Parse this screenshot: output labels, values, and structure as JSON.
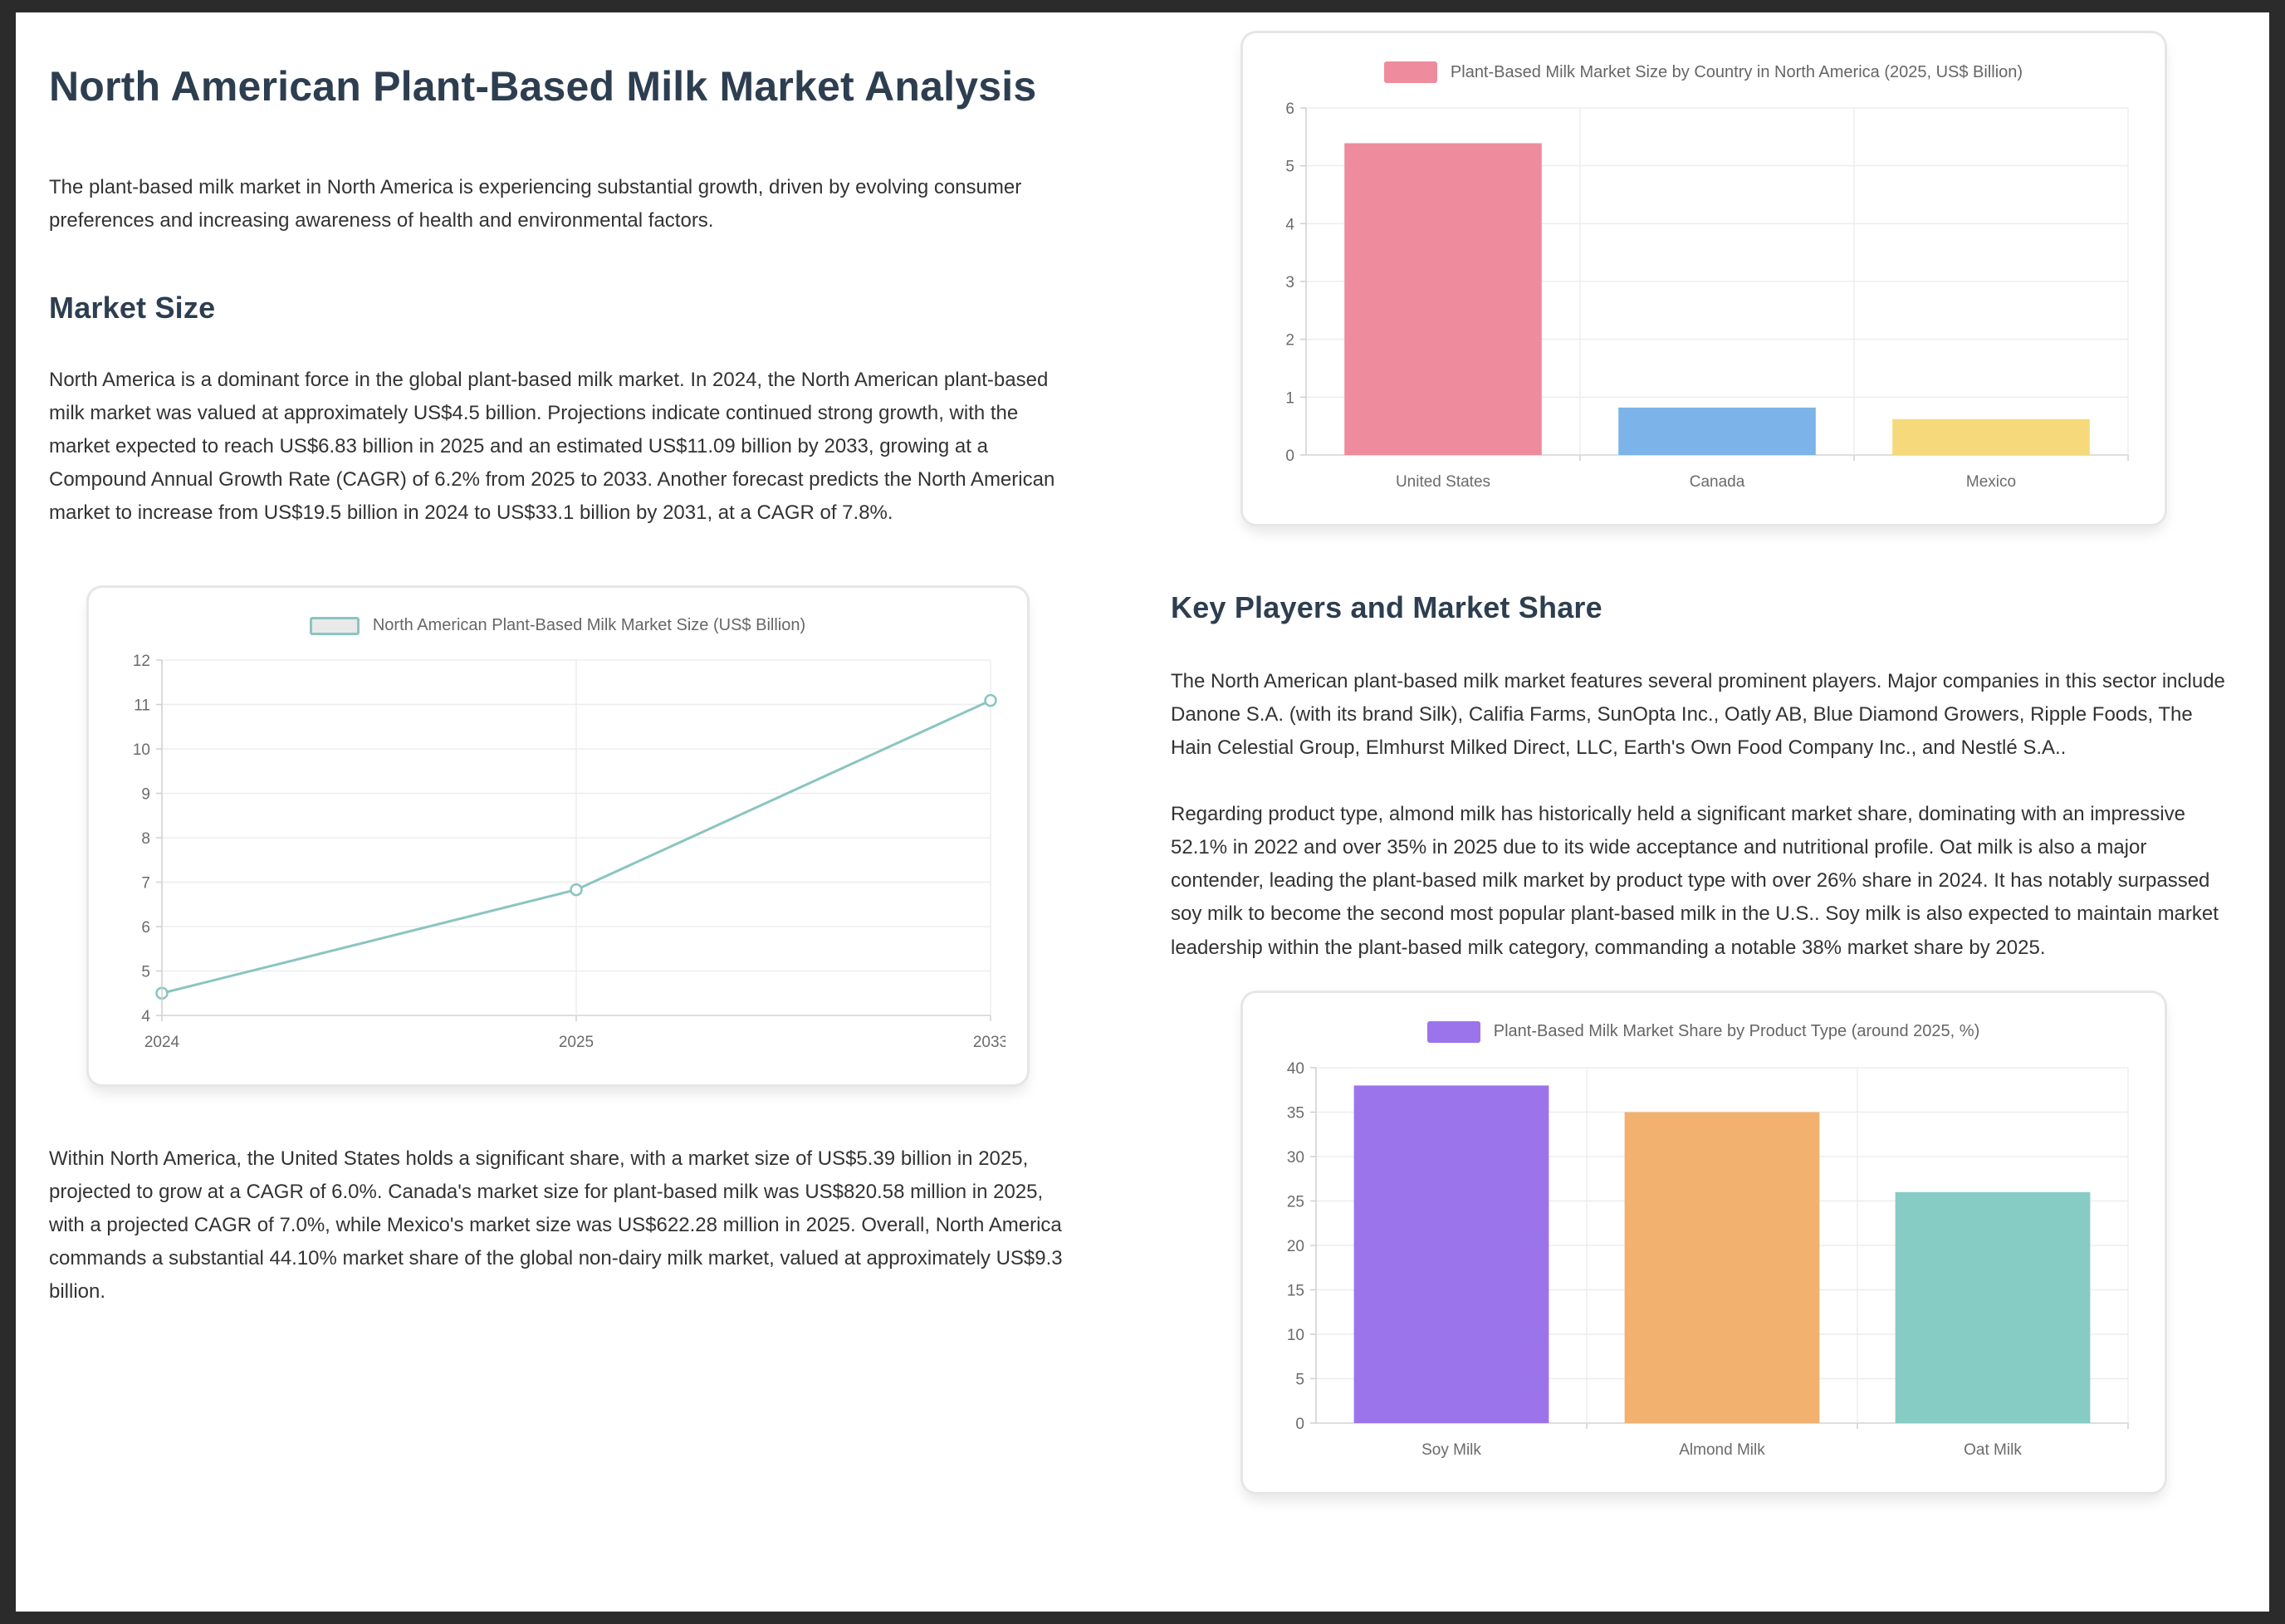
{
  "page": {
    "title": "North American Plant-Based Milk Market Analysis",
    "intro": "The plant-based milk market in North America is experiencing substantial growth, driven by evolving consumer preferences and increasing awareness of health and environmental factors.",
    "market_size_heading": "Market Size",
    "market_size_p1": "North America is a dominant force in the global plant-based milk market. In 2024, the North American plant-based milk market was valued at approximately US$4.5 billion. Projections indicate continued strong growth, with the market expected to reach US$6.83 billion in 2025 and an estimated US$11.09 billion by 2033, growing at a Compound Annual Growth Rate (CAGR) of 6.2% from 2025 to 2033. Another forecast predicts the North American market to increase from US$19.5 billion in 2024 to US$33.1 billion by 2031, at a CAGR of 7.8%.",
    "market_size_p2": "Within North America, the United States holds a significant share, with a market size of US$5.39 billion in 2025, projected to grow at a CAGR of 6.0%. Canada's market size for plant-based milk was US$820.58 million in 2025, with a projected CAGR of 7.0%, while Mexico's market size was US$622.28 million in 2025. Overall, North America commands a substantial 44.10% market share of the global non-dairy milk market, valued at approximately US$9.3 billion.",
    "key_players_heading": "Key Players and Market Share",
    "key_players_p1": "The North American plant-based milk market features several prominent players. Major companies in this sector include Danone S.A. (with its brand Silk), Califia Farms, SunOpta Inc., Oatly AB, Blue Diamond Growers, Ripple Foods, The Hain Celestial Group, Elmhurst Milked Direct, LLC, Earth's Own Food Company Inc., and Nestlé S.A..",
    "key_players_p2": "Regarding product type, almond milk has historically held a significant market share, dominating with an impressive 52.1% in 2022 and over 35% in 2025 due to its wide acceptance and nutritional profile. Oat milk is also a major contender, leading the plant-based milk market by product type with over 26% share in 2024. It has notably surpassed soy milk to become the second most popular plant-based milk in the U.S.. Soy milk is also expected to maintain market leadership within the plant-based milk category, commanding a notable 38% market share by 2025."
  },
  "chart_data": [
    {
      "id": "na-market-size-trend",
      "type": "line",
      "title": "North American Plant-Based Milk Market Size (US$ Billion)",
      "x": [
        "2024",
        "2025",
        "2033"
      ],
      "values": [
        4.5,
        6.83,
        11.09
      ],
      "xlabel": "",
      "ylabel": "",
      "ylim": [
        4,
        12
      ],
      "ytick_step": 1,
      "grid": true,
      "legend_position": "top",
      "line_color": "#8ac5c0",
      "legend_fill": "#e9e9e9"
    },
    {
      "id": "market-size-by-country",
      "type": "bar",
      "title": "Plant-Based Milk Market Size by Country in North America (2025, US$ Billion)",
      "categories": [
        "United States",
        "Canada",
        "Mexico"
      ],
      "values": [
        5.39,
        0.82,
        0.62
      ],
      "xlabel": "",
      "ylabel": "",
      "ylim": [
        0,
        6
      ],
      "ytick_step": 1,
      "grid": true,
      "legend_position": "top",
      "bar_colors": [
        "#ee8b9d",
        "#7cb3e8",
        "#f6d97a"
      ],
      "legend_color": "#ee8b9d"
    },
    {
      "id": "share-by-product-type",
      "type": "bar",
      "title": "Plant-Based Milk Market Share by Product Type (around 2025, %)",
      "categories": [
        "Soy Milk",
        "Almond Milk",
        "Oat Milk"
      ],
      "values": [
        38,
        35,
        26
      ],
      "xlabel": "",
      "ylabel": "",
      "ylim": [
        0,
        40
      ],
      "ytick_step": 5,
      "grid": true,
      "legend_position": "top",
      "bar_colors": [
        "#9b74ec",
        "#f2b16e",
        "#86cbc4"
      ],
      "legend_color": "#9b74ec"
    }
  ]
}
